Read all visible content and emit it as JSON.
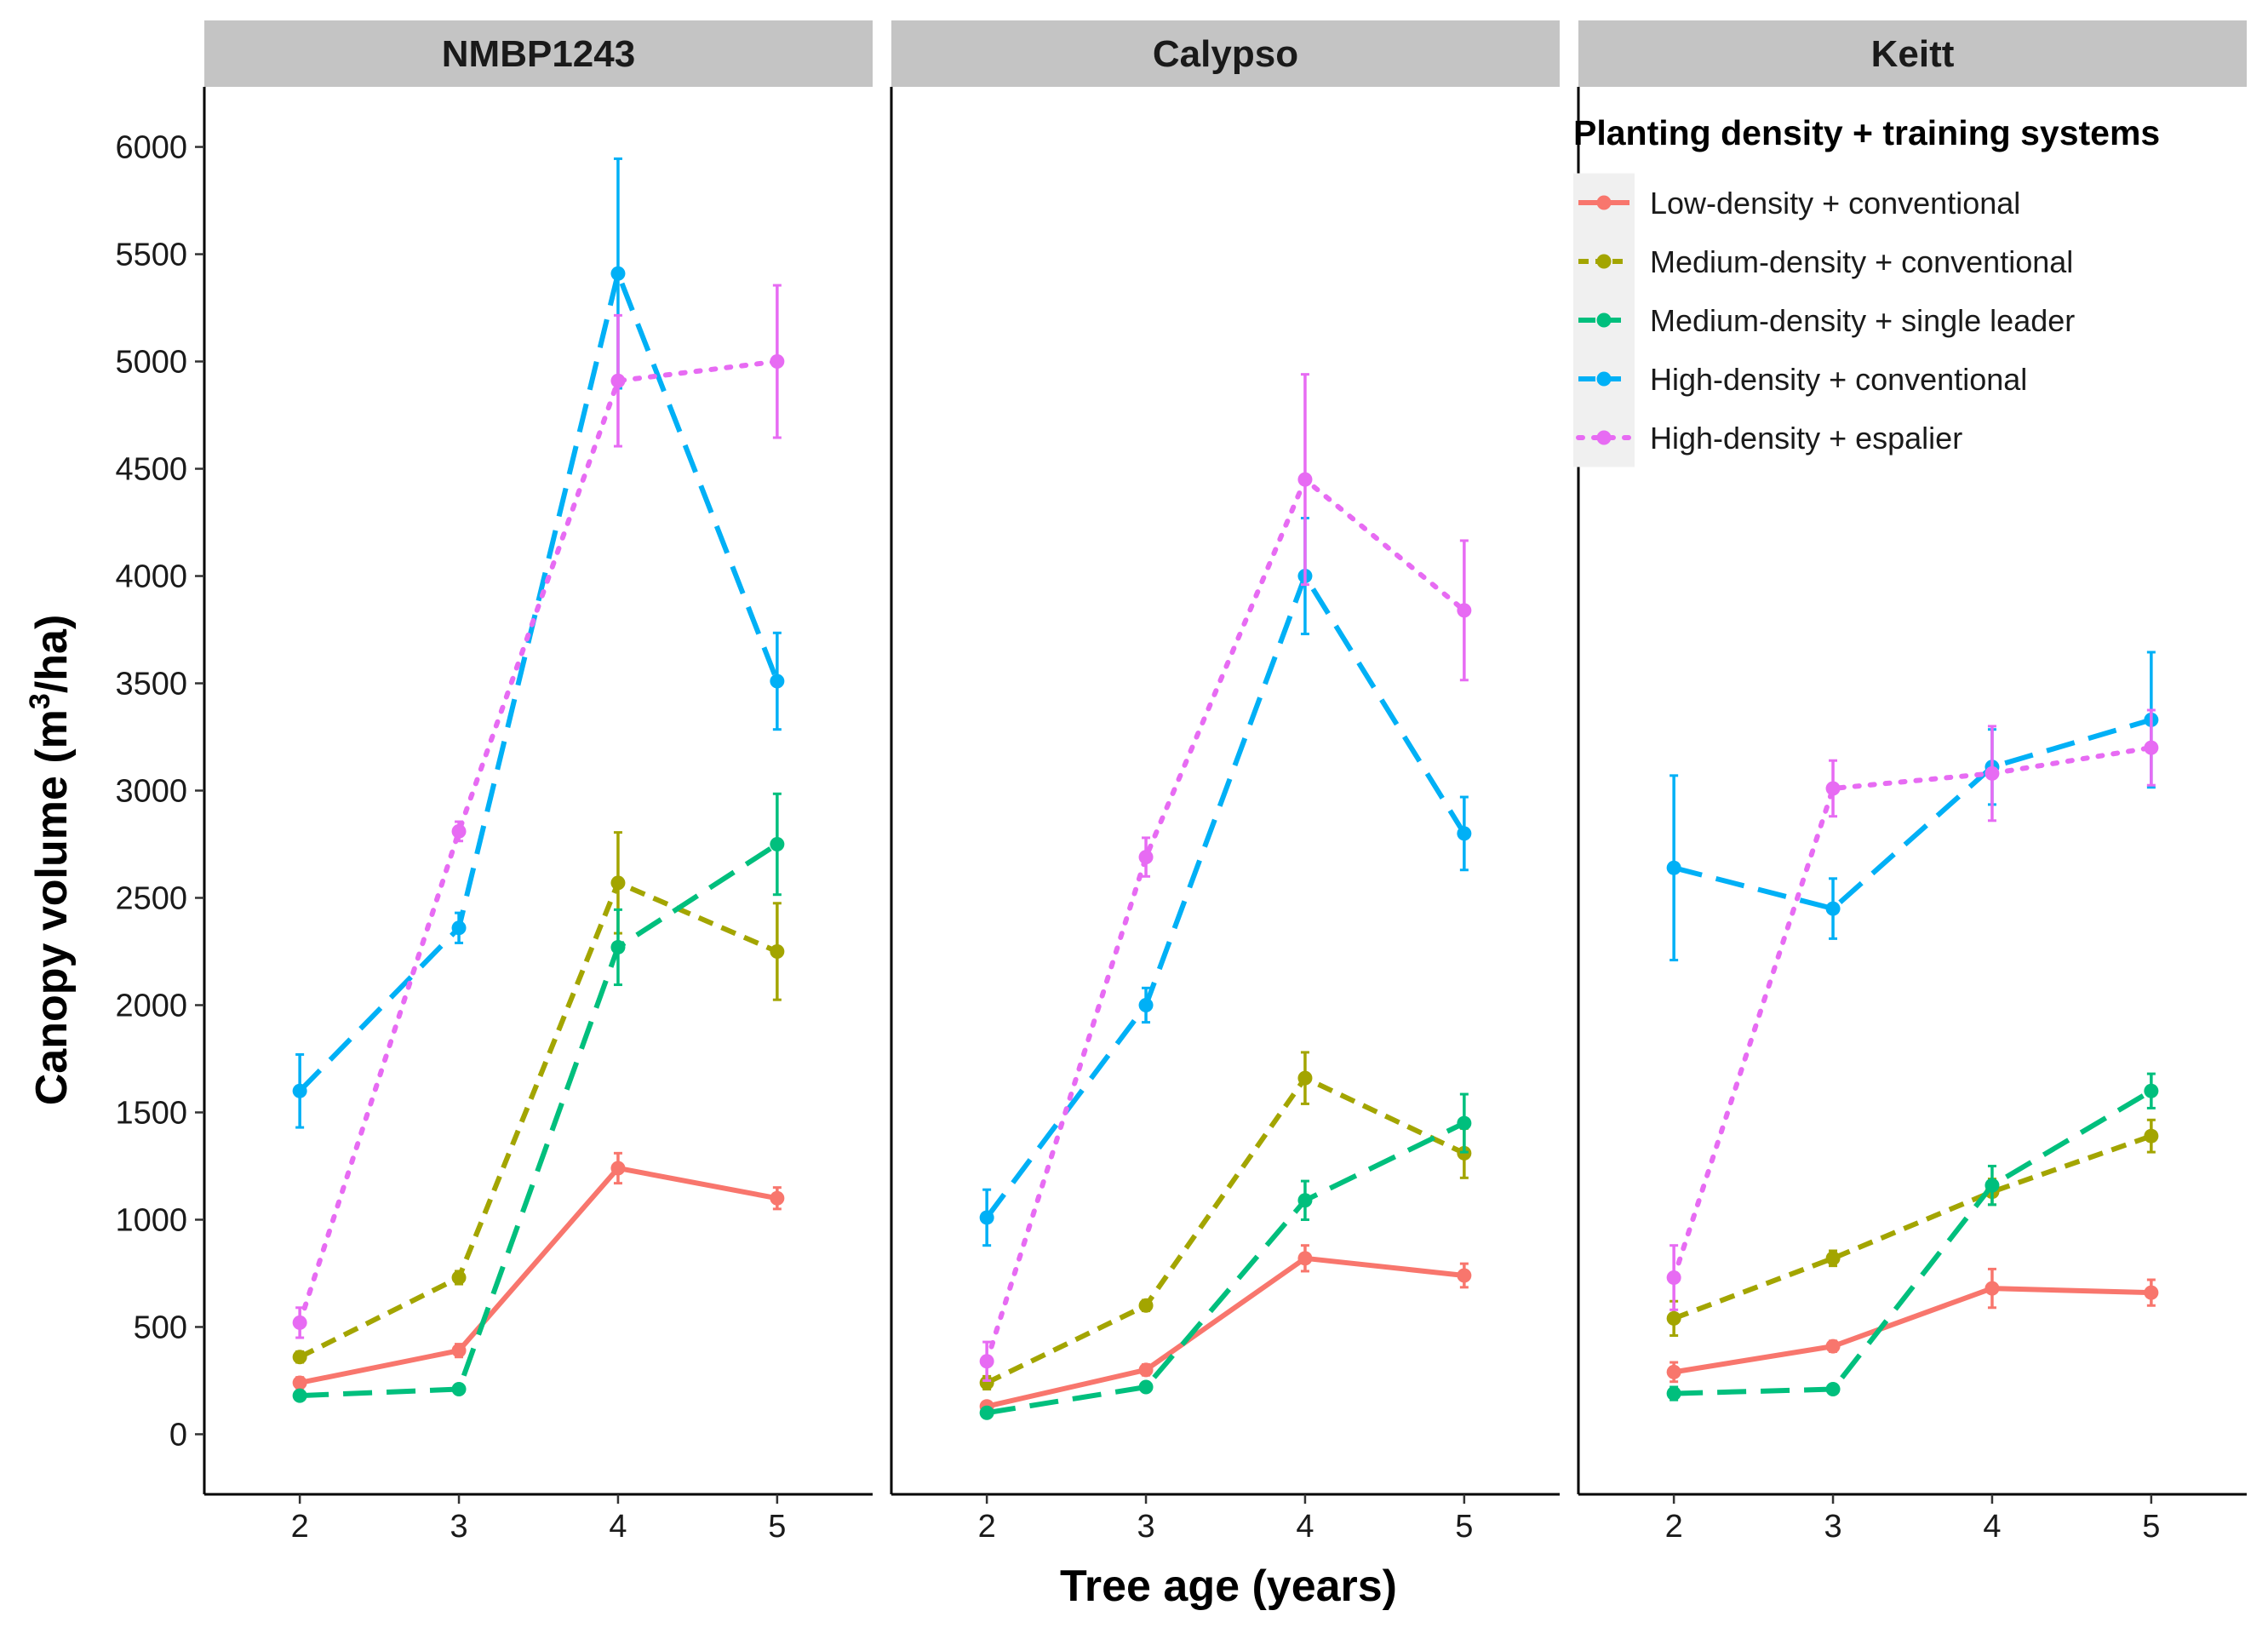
{
  "chart_data": {
    "type": "line",
    "xlabel": "Tree age (years)",
    "ylabel": {
      "prefix": "Canopy volume (m",
      "superscript": "3",
      "suffix": "/ha)"
    },
    "ylim": [
      -280,
      6280
    ],
    "yticks": [
      0,
      500,
      1000,
      1500,
      2000,
      2500,
      3000,
      3500,
      4000,
      4500,
      5000,
      5500,
      6000
    ],
    "x": [
      2,
      3,
      4,
      5
    ],
    "xlim": [
      1.4,
      5.6
    ],
    "legend": {
      "title": "Planting density + training systems",
      "position": "top-right"
    },
    "series_styles": [
      {
        "name": "Low-density + conventional",
        "color": "#F8766D",
        "dash": "solid"
      },
      {
        "name": "Medium-density + conventional",
        "color": "#A3A500",
        "dash": "short-dash"
      },
      {
        "name": "Medium-density + single leader",
        "color": "#00BF7D",
        "dash": "long-dash"
      },
      {
        "name": "High-density + conventional",
        "color": "#00B0F6",
        "dash": "long-dash"
      },
      {
        "name": "High-density + espalier",
        "color": "#E76BF3",
        "dash": "dotted"
      }
    ],
    "panels": [
      {
        "title": "NMBP1243",
        "series": [
          {
            "name": "Low-density + conventional",
            "values": [
              240,
              390,
              1240,
              1100
            ],
            "errors": [
              25,
              30,
              70,
              50
            ]
          },
          {
            "name": "Medium-density + conventional",
            "values": [
              360,
              730,
              2570,
              2250
            ],
            "errors": [
              25,
              30,
              235,
              225
            ]
          },
          {
            "name": "Medium-density + single leader",
            "values": [
              180,
              210,
              2270,
              2750
            ],
            "errors": [
              20,
              20,
              175,
              235
            ]
          },
          {
            "name": "High-density + conventional",
            "values": [
              1600,
              2360,
              5410,
              3510
            ],
            "errors": [
              170,
              70,
              535,
              225
            ]
          },
          {
            "name": "High-density + espalier",
            "values": [
              520,
              2810,
              4910,
              5000
            ],
            "errors": [
              70,
              45,
              305,
              355
            ]
          }
        ]
      },
      {
        "title": "Calypso",
        "series": [
          {
            "name": "Low-density + conventional",
            "values": [
              130,
              300,
              820,
              740
            ],
            "errors": [
              20,
              25,
              60,
              55
            ]
          },
          {
            "name": "Medium-density + conventional",
            "values": [
              240,
              600,
              1660,
              1310
            ],
            "errors": [
              30,
              25,
              120,
              115
            ]
          },
          {
            "name": "Medium-density + single leader",
            "values": [
              100,
              220,
              1090,
              1450
            ],
            "errors": [
              15,
              20,
              90,
              135
            ]
          },
          {
            "name": "High-density + conventional",
            "values": [
              1010,
              2000,
              4000,
              2800
            ],
            "errors": [
              130,
              80,
              270,
              170
            ]
          },
          {
            "name": "High-density + espalier",
            "values": [
              340,
              2690,
              4450,
              3840
            ],
            "errors": [
              90,
              90,
              490,
              325
            ]
          }
        ]
      },
      {
        "title": "Keitt",
        "series": [
          {
            "name": "Low-density + conventional",
            "values": [
              290,
              410,
              680,
              660
            ],
            "errors": [
              45,
              25,
              90,
              60
            ]
          },
          {
            "name": "Medium-density + conventional",
            "values": [
              540,
              820,
              1130,
              1390
            ],
            "errors": [
              80,
              35,
              60,
              75
            ]
          },
          {
            "name": "Medium-density + single leader",
            "values": [
              190,
              210,
              1160,
              1600
            ],
            "errors": [
              30,
              20,
              90,
              80
            ]
          },
          {
            "name": "High-density + conventional",
            "values": [
              2640,
              2450,
              3110,
              3330
            ],
            "errors": [
              430,
              140,
              175,
              315
            ]
          },
          {
            "name": "High-density + espalier",
            "values": [
              730,
              3010,
              3080,
              3200
            ],
            "errors": [
              150,
              130,
              220,
              175
            ]
          }
        ]
      }
    ]
  }
}
